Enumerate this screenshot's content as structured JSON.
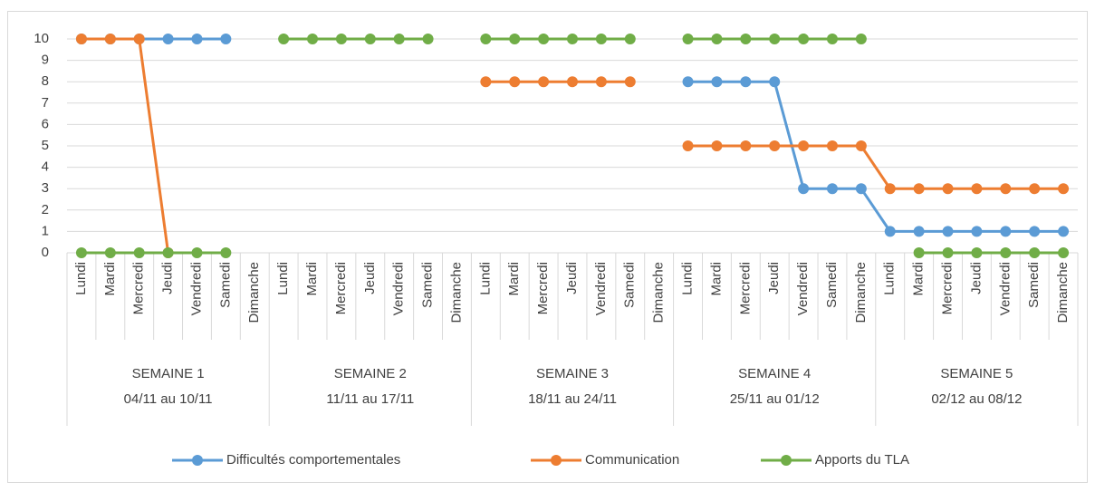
{
  "chart_data": {
    "type": "line",
    "categories": [
      "Lundi",
      "Mardi",
      "Mercredi",
      "Jeudi",
      "Vendredi",
      "Samedi",
      "Dimanche",
      "Lundi",
      "Mardi",
      "Mercredi",
      "Jeudi",
      "Vendredi",
      "Samedi",
      "Dimanche",
      "Lundi",
      "Mardi",
      "Mercredi",
      "Jeudi",
      "Vendredi",
      "Samedi",
      "Dimanche",
      "Lundi",
      "Mardi",
      "Mercredi",
      "Jeudi",
      "Vendredi",
      "Samedi",
      "Dimanche",
      "Lundi",
      "Mardi",
      "Mercredi",
      "Jeudi",
      "Vendredi",
      "Samedi",
      "Dimanche"
    ],
    "groups": [
      {
        "label": "SEMAINE 1",
        "dates": "04/11 au 10/11"
      },
      {
        "label": "SEMAINE 2",
        "dates": "11/11 au 17/11"
      },
      {
        "label": "SEMAINE 3",
        "dates": "18/11 au 24/11"
      },
      {
        "label": "SEMAINE 4",
        "dates": "25/11 au 01/12"
      },
      {
        "label": "SEMAINE 5",
        "dates": "02/12 au 08/12"
      }
    ],
    "series": [
      {
        "name": "Difficultés comportementales",
        "color": "#5b9bd5",
        "values": [
          10,
          10,
          10,
          10,
          10,
          10,
          null,
          null,
          null,
          null,
          null,
          null,
          null,
          null,
          null,
          null,
          null,
          null,
          null,
          null,
          null,
          8,
          8,
          8,
          8,
          3,
          3,
          3,
          1,
          1,
          1,
          1,
          1,
          1,
          1
        ]
      },
      {
        "name": "Communication",
        "color": "#ed7d31",
        "values": [
          10,
          10,
          10,
          0,
          null,
          null,
          null,
          null,
          null,
          null,
          null,
          null,
          null,
          null,
          8,
          8,
          8,
          8,
          8,
          8,
          null,
          5,
          5,
          5,
          5,
          5,
          5,
          5,
          3,
          3,
          3,
          3,
          3,
          3,
          3
        ]
      },
      {
        "name": "Apports du TLA",
        "color": "#70ad47",
        "values": [
          0,
          0,
          0,
          0,
          0,
          0,
          null,
          10,
          10,
          10,
          10,
          10,
          10,
          null,
          10,
          10,
          10,
          10,
          10,
          10,
          null,
          10,
          10,
          10,
          10,
          10,
          10,
          10,
          null,
          0,
          0,
          0,
          0,
          0,
          0
        ]
      }
    ],
    "ylim": [
      0,
      10
    ],
    "yticks": [
      0,
      1,
      2,
      3,
      4,
      5,
      6,
      7,
      8,
      9,
      10
    ],
    "grid": true,
    "legend": "bottom"
  }
}
